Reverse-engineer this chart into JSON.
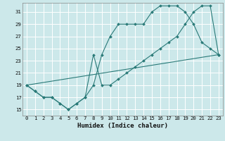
{
  "xlabel": "Humidex (Indice chaleur)",
  "xlim": [
    -0.5,
    23.5
  ],
  "ylim": [
    14.0,
    32.5
  ],
  "xticks": [
    0,
    1,
    2,
    3,
    4,
    5,
    6,
    7,
    8,
    9,
    10,
    11,
    12,
    13,
    14,
    15,
    16,
    17,
    18,
    19,
    20,
    21,
    22,
    23
  ],
  "yticks": [
    15,
    17,
    19,
    21,
    23,
    25,
    27,
    29,
    31
  ],
  "background_color": "#cce8ea",
  "grid_color": "#ffffff",
  "line_color": "#2a7a78",
  "line1_x": [
    0,
    1,
    2,
    3,
    4,
    5,
    6,
    7,
    8,
    9,
    10,
    11,
    12,
    13,
    14,
    15,
    16,
    17,
    18,
    19,
    20,
    21,
    22,
    23
  ],
  "line1_y": [
    19,
    18,
    17,
    17,
    16,
    15,
    16,
    17,
    19,
    24,
    27,
    29,
    29,
    29,
    29,
    31,
    32,
    32,
    32,
    31,
    29,
    26,
    25,
    24
  ],
  "line2_x": [
    0,
    1,
    2,
    3,
    4,
    5,
    6,
    7,
    8,
    9,
    10,
    11,
    12,
    13,
    14,
    15,
    16,
    17,
    18,
    19,
    20,
    21,
    22,
    23
  ],
  "line2_y": [
    19,
    18,
    17,
    17,
    16,
    15,
    16,
    17,
    24,
    19,
    19,
    20,
    21,
    22,
    23,
    24,
    25,
    26,
    27,
    29,
    31,
    32,
    32,
    24
  ],
  "line3_x": [
    0,
    23
  ],
  "line3_y": [
    19,
    24
  ]
}
